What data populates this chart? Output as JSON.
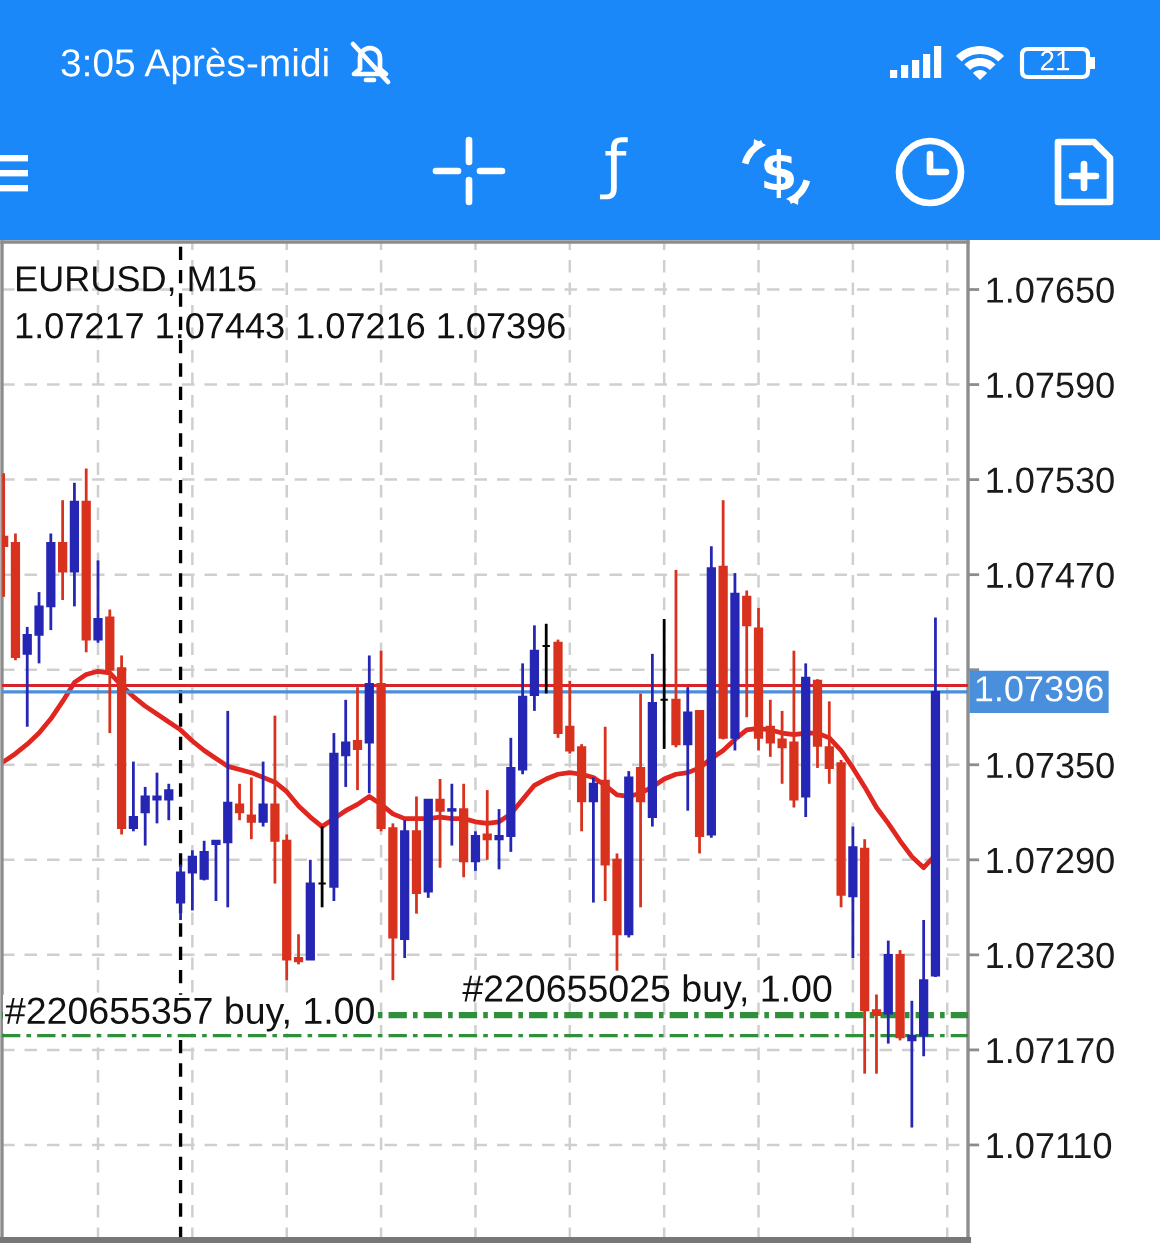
{
  "chart_data": {
    "type": "candlestick",
    "title": "EURUSD, M15",
    "subtitle": "1.07217 1.07443 1.07216 1.07396",
    "categories": [
      null,
      null,
      null,
      null,
      null,
      null,
      null,
      null,
      null,
      null,
      null,
      null,
      null,
      null,
      null,
      null,
      null,
      null,
      null,
      null,
      null,
      null,
      null,
      null,
      null,
      null,
      null,
      null,
      null,
      null,
      null,
      null,
      null,
      null,
      null,
      null,
      null,
      null,
      null,
      null,
      null,
      null,
      null,
      null,
      null,
      null,
      null,
      null,
      null,
      null,
      null,
      null,
      null,
      null,
      null,
      null,
      null,
      null,
      null,
      null,
      null,
      null,
      null,
      null,
      null,
      null,
      null,
      null,
      null,
      null,
      null,
      null,
      null,
      null,
      null,
      null,
      null,
      null,
      null,
      null
    ],
    "series": [
      {
        "ohlc": [
          [
            1.07494,
            1.07534,
            1.07456,
            1.07488
          ],
          [
            1.0749,
            1.07496,
            1.07416,
            1.07418
          ],
          [
            1.0742,
            1.07437,
            1.07374,
            1.07432
          ],
          [
            1.07432,
            1.07459,
            1.07414,
            1.0745
          ],
          [
            1.0745,
            1.07496,
            1.07435,
            1.0749
          ],
          [
            1.0749,
            1.07517,
            1.07454,
            1.07472
          ],
          [
            1.07472,
            1.07528,
            1.0745,
            1.07516
          ],
          [
            1.07516,
            1.07537,
            1.07421,
            1.07429
          ],
          [
            1.07429,
            1.07479,
            1.07427,
            1.07442
          ],
          [
            1.07443,
            1.07448,
            1.0737,
            1.0741
          ],
          [
            1.07411,
            1.07419,
            1.07306,
            1.0731
          ],
          [
            1.0731,
            1.07352,
            1.07308,
            1.07317
          ],
          [
            1.0732,
            1.07336,
            1.07299,
            1.0733
          ],
          [
            1.07328,
            1.07345,
            1.07313,
            1.0733
          ],
          [
            1.07328,
            1.07338,
            1.07315,
            1.07334
          ],
          [
            1.07263,
            1.07287,
            1.07252,
            1.07282
          ],
          [
            1.07282,
            1.07296,
            1.07258,
            1.07292
          ],
          [
            1.07278,
            1.07302,
            1.07277,
            1.07295
          ],
          [
            1.073,
            1.07302,
            1.07264,
            1.07302
          ],
          [
            1.07301,
            1.07384,
            1.0726,
            1.07326
          ],
          [
            1.07325,
            1.07338,
            1.07315,
            1.0732
          ],
          [
            1.07318,
            1.07342,
            1.07303,
            1.07314
          ],
          [
            1.07314,
            1.07352,
            1.07311,
            1.07325
          ],
          [
            1.07325,
            1.07381,
            1.07275,
            1.07302
          ],
          [
            1.07302,
            1.07306,
            1.07214,
            1.07227
          ],
          [
            1.07228,
            1.07243,
            1.07224,
            1.07226
          ],
          [
            1.07227,
            1.0729,
            1.07227,
            1.07275
          ],
          [
            1.07275,
            1.07311,
            1.0726,
            1.07275
          ],
          [
            1.07273,
            1.0737,
            1.07264,
            1.07357
          ],
          [
            1.07356,
            1.07391,
            1.07336,
            1.07364
          ],
          [
            1.07365,
            1.07399,
            1.07334,
            1.0736
          ],
          [
            1.07364,
            1.07419,
            1.07332,
            1.07401
          ],
          [
            1.07401,
            1.07422,
            1.07308,
            1.0731
          ],
          [
            1.0731,
            1.07313,
            1.07214,
            1.07241
          ],
          [
            1.0724,
            1.07315,
            1.07228,
            1.07308
          ],
          [
            1.07308,
            1.0733,
            1.07256,
            1.07269
          ],
          [
            1.0727,
            1.07328,
            1.07266,
            1.07328
          ],
          [
            1.07328,
            1.07341,
            1.07285,
            1.07321
          ],
          [
            1.07321,
            1.07338,
            1.07299,
            1.07322
          ],
          [
            1.07322,
            1.07338,
            1.07279,
            1.07289
          ],
          [
            1.07289,
            1.07308,
            1.07283,
            1.07305
          ],
          [
            1.07306,
            1.07334,
            1.0729,
            1.07303
          ],
          [
            1.07303,
            1.07322,
            1.07284,
            1.07305
          ],
          [
            1.07305,
            1.07367,
            1.07295,
            1.07348
          ],
          [
            1.07347,
            1.07414,
            1.07344,
            1.07393
          ],
          [
            1.07394,
            1.07438,
            1.07384,
            1.07422
          ],
          [
            1.07425,
            1.07439,
            1.07395,
            1.07425
          ],
          [
            1.07427,
            1.07429,
            1.07367,
            1.0737
          ],
          [
            1.07374,
            1.07403,
            1.07357,
            1.07359
          ],
          [
            1.07361,
            1.07363,
            1.07308,
            1.07327
          ],
          [
            1.07327,
            1.07342,
            1.07263,
            1.07338
          ],
          [
            1.0734,
            1.07374,
            1.07264,
            1.07287
          ],
          [
            1.0729,
            1.07294,
            1.0722,
            1.07243
          ],
          [
            1.07243,
            1.07346,
            1.07241,
            1.07342
          ],
          [
            1.07348,
            1.07395,
            1.0726,
            1.07327
          ],
          [
            1.07317,
            1.0742,
            1.07311,
            1.07389
          ],
          [
            1.07391,
            1.07442,
            1.0736,
            1.07391
          ],
          [
            1.07391,
            1.07473,
            1.07361,
            1.07363
          ],
          [
            1.07363,
            1.07399,
            1.07321,
            1.07383
          ],
          [
            1.07384,
            1.07384,
            1.07294,
            1.07305
          ],
          [
            1.07306,
            1.07488,
            1.07304,
            1.07474
          ],
          [
            1.07475,
            1.07517,
            1.07366,
            1.07367
          ],
          [
            1.07367,
            1.07471,
            1.07359,
            1.07458
          ],
          [
            1.07456,
            1.0746,
            1.0738,
            1.07438
          ],
          [
            1.07436,
            1.07449,
            1.07359,
            1.07367
          ],
          [
            1.07374,
            1.07391,
            1.07355,
            1.07364
          ],
          [
            1.07366,
            1.07384,
            1.07338,
            1.07361
          ],
          [
            1.07364,
            1.07422,
            1.07323,
            1.07328
          ],
          [
            1.0733,
            1.07414,
            1.07317,
            1.07405
          ],
          [
            1.07403,
            1.07404,
            1.07348,
            1.07362
          ],
          [
            1.07361,
            1.0739,
            1.07338,
            1.07348
          ],
          [
            1.07351,
            1.07353,
            1.0726,
            1.07268
          ],
          [
            1.07267,
            1.07311,
            1.07228,
            1.07298
          ],
          [
            1.07297,
            1.07303,
            1.07155,
            1.07195
          ],
          [
            1.07195,
            1.07205,
            1.07155,
            1.07192
          ],
          [
            1.07193,
            1.07239,
            1.07174,
            1.0723
          ],
          [
            1.0723,
            1.07233,
            1.07176,
            1.07178
          ],
          [
            1.07176,
            1.07201,
            1.07121,
            1.07179
          ],
          [
            1.07179,
            1.07252,
            1.07166,
            1.07214
          ],
          [
            1.07217,
            1.07443,
            1.07216,
            1.07396
          ]
        ],
        "colors": [
          "#d8321e",
          "#d8321e",
          "#2626b5",
          "#2626b5",
          "#2626b5",
          "#d8321e",
          "#2626b5",
          "#d8321e",
          "#2626b5",
          "#d8321e",
          "#d8321e",
          "#2626b5",
          "#2626b5",
          "#2626b5",
          "#2626b5",
          "#2626b5",
          "#2626b5",
          "#2626b5",
          "#2626b5",
          "#2626b5",
          "#d8321e",
          "#d8321e",
          "#2626b5",
          "#d8321e",
          "#d8321e",
          "#d8321e",
          "#2626b5",
          "#000000",
          "#2626b5",
          "#2626b5",
          "#d8321e",
          "#2626b5",
          "#d8321e",
          "#d8321e",
          "#2626b5",
          "#d8321e",
          "#2626b5",
          "#d8321e",
          "#2626b5",
          "#d8321e",
          "#2626b5",
          "#d8321e",
          "#2626b5",
          "#2626b5",
          "#2626b5",
          "#2626b5",
          "#000000",
          "#d8321e",
          "#d8321e",
          "#d8321e",
          "#2626b5",
          "#d8321e",
          "#d8321e",
          "#2626b5",
          "#d8321e",
          "#2626b5",
          "#000000",
          "#d8321e",
          "#2626b5",
          "#d8321e",
          "#2626b5",
          "#d8321e",
          "#2626b5",
          "#d8321e",
          "#d8321e",
          "#d8321e",
          "#d8321e",
          "#d8321e",
          "#2626b5",
          "#d8321e",
          "#d8321e",
          "#d8321e",
          "#2626b5",
          "#d8321e",
          "#d8321e",
          "#2626b5",
          "#d8321e",
          "#2626b5",
          "#2626b5",
          "#2626b5"
        ]
      },
      {
        "type": "line",
        "color": "#e0261e",
        "values": [
          1.07352,
          1.07357,
          1.07363,
          1.0737,
          1.07379,
          1.0739,
          1.07402,
          1.07407,
          1.07409,
          1.07408,
          1.074,
          1.07393,
          1.07387,
          1.07382,
          1.07377,
          1.07372,
          1.07365,
          1.07359,
          1.07354,
          1.07349,
          1.07347,
          1.07345,
          1.07342,
          1.07339,
          1.07333,
          1.07324,
          1.07317,
          1.07311,
          1.07316,
          1.07321,
          1.07325,
          1.0733,
          1.07325,
          1.07319,
          1.07316,
          1.07316,
          1.07316,
          1.07317,
          1.07316,
          1.07316,
          1.07314,
          1.07313,
          1.07314,
          1.07319,
          1.07328,
          1.07337,
          1.07341,
          1.07344,
          1.07345,
          1.07344,
          1.07342,
          1.07337,
          1.07331,
          1.0733,
          1.07332,
          1.07336,
          1.07341,
          1.07344,
          1.07345,
          1.07348,
          1.07354,
          1.07359,
          1.07366,
          1.07372,
          1.07373,
          1.07372,
          1.0737,
          1.07369,
          1.0737,
          1.0737,
          1.07367,
          1.07359,
          1.07348,
          1.07336,
          1.07323,
          1.07313,
          1.07302,
          1.07292,
          1.07285,
          1.07293
        ]
      }
    ],
    "ylim": [
      1.0705,
      1.0768
    ],
    "yticks": [
      {
        "value": 1.0765,
        "label": "1.07650"
      },
      {
        "value": 1.0759,
        "label": "1.07590"
      },
      {
        "value": 1.0753,
        "label": "1.07530"
      },
      {
        "value": 1.0747,
        "label": "1.07470"
      },
      {
        "value": 1.0741,
        "label": null
      },
      {
        "value": 1.0735,
        "label": "1.07350"
      },
      {
        "value": 1.0729,
        "label": "1.07290"
      },
      {
        "value": 1.0723,
        "label": "1.07230"
      },
      {
        "value": 1.0717,
        "label": "1.07170"
      },
      {
        "value": 1.0711,
        "label": "1.07110"
      }
    ],
    "grid": true,
    "tick_labels": "y",
    "ref_lines": [
      {
        "axis": "y",
        "value": 1.074,
        "color": "#d8232a",
        "line_style": "solid"
      },
      {
        "axis": "y",
        "value": 1.07396,
        "label": "1.07396",
        "color": "#4a8fdc",
        "line_style": "solid"
      },
      {
        "axis": "y",
        "value": 1.07179,
        "label": "#220655357 buy, 1.00",
        "color": "#2f8f3a",
        "line_style": "dashdot"
      },
      {
        "axis": "y",
        "value": 1.07193,
        "label": "#220655025 buy, 1.00",
        "color": "#2f8f3a",
        "line_style": "dashdot"
      },
      {
        "axis": "y",
        "value": 1.07191,
        "color": "#2f8f3a",
        "line_style": "dashdot"
      }
    ],
    "annotations": [
      "3:05 Après-midi",
      "21"
    ]
  }
}
